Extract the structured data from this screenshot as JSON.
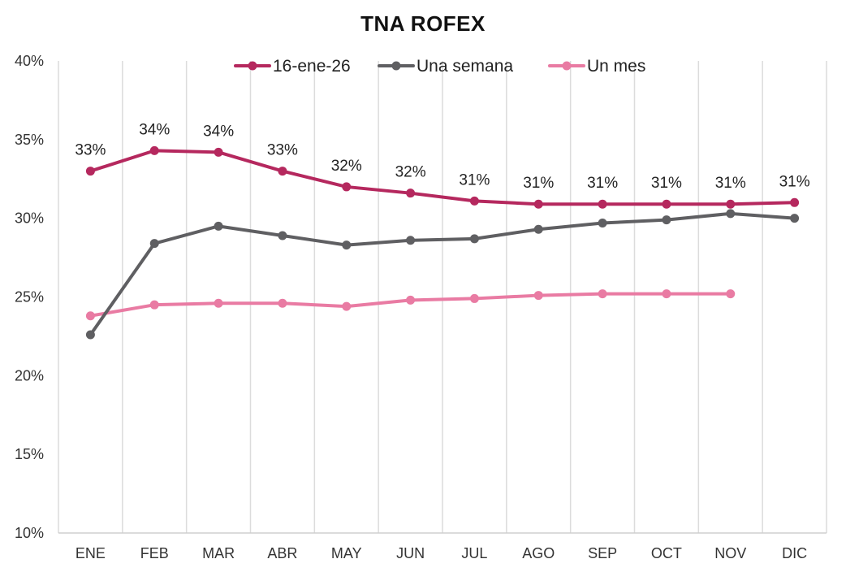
{
  "chart_data": {
    "type": "line",
    "title": "TNA ROFEX",
    "xlabel": "",
    "ylabel": "",
    "categories": [
      "ENE",
      "FEB",
      "MAR",
      "ABR",
      "MAY",
      "JUN",
      "JUL",
      "AGO",
      "SEP",
      "OCT",
      "NOV",
      "DIC"
    ],
    "ylim": [
      10,
      40
    ],
    "yticks": [
      10,
      15,
      20,
      25,
      30,
      35,
      40
    ],
    "ytick_labels": [
      "10%",
      "15%",
      "20%",
      "25%",
      "30%",
      "35%",
      "40%"
    ],
    "grid": "vertical",
    "legend": "top-center",
    "series": [
      {
        "name": "16-ene-26",
        "color": "#B5285E",
        "values": [
          33.0,
          34.3,
          34.2,
          33.0,
          32.0,
          31.6,
          31.1,
          30.9,
          30.9,
          30.9,
          30.9,
          31.0
        ],
        "data_labels": [
          "33%",
          "34%",
          "34%",
          "33%",
          "32%",
          "32%",
          "31%",
          "31%",
          "31%",
          "31%",
          "31%",
          "31%"
        ]
      },
      {
        "name": "Una semana",
        "color": "#5F5F62",
        "values": [
          22.6,
          28.4,
          29.5,
          28.9,
          28.3,
          28.6,
          28.7,
          29.3,
          29.7,
          29.9,
          30.3,
          30.0
        ]
      },
      {
        "name": "Un mes",
        "color": "#E97BA3",
        "values": [
          23.8,
          24.5,
          24.6,
          24.6,
          24.4,
          24.8,
          24.9,
          25.1,
          25.2,
          25.2,
          25.2,
          null
        ]
      }
    ]
  }
}
